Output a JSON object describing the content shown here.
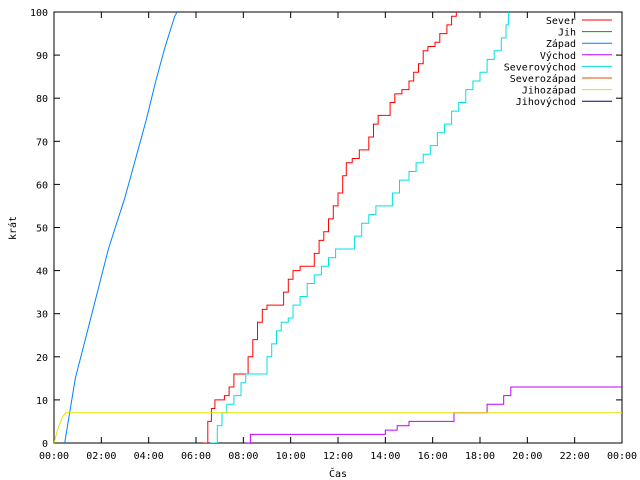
{
  "chart_data": {
    "type": "line",
    "title": "",
    "xlabel": "Čas",
    "ylabel": "krát",
    "xlim": [
      0,
      24
    ],
    "ylim": [
      0,
      100
    ],
    "xticks": [
      {
        "v": 0,
        "label": "00:00"
      },
      {
        "v": 2,
        "label": "02:00"
      },
      {
        "v": 4,
        "label": "04:00"
      },
      {
        "v": 6,
        "label": "06:00"
      },
      {
        "v": 8,
        "label": "08:00"
      },
      {
        "v": 10,
        "label": "10:00"
      },
      {
        "v": 12,
        "label": "12:00"
      },
      {
        "v": 14,
        "label": "14:00"
      },
      {
        "v": 16,
        "label": "16:00"
      },
      {
        "v": 18,
        "label": "18:00"
      },
      {
        "v": 20,
        "label": "20:00"
      },
      {
        "v": 22,
        "label": "22:00"
      },
      {
        "v": 24,
        "label": "00:00"
      }
    ],
    "yticks": [
      {
        "v": 0,
        "label": "0"
      },
      {
        "v": 10,
        "label": "10"
      },
      {
        "v": 20,
        "label": "20"
      },
      {
        "v": 30,
        "label": "30"
      },
      {
        "v": 40,
        "label": "40"
      },
      {
        "v": 50,
        "label": "50"
      },
      {
        "v": 60,
        "label": "60"
      },
      {
        "v": 70,
        "label": "70"
      },
      {
        "v": 80,
        "label": "80"
      },
      {
        "v": 90,
        "label": "90"
      },
      {
        "v": 100,
        "label": "100"
      }
    ],
    "grid": false,
    "legend_position": "top-right",
    "series": [
      {
        "name": "Sever",
        "color": "#ff0000",
        "step": true,
        "points": [
          [
            6.3,
            0
          ],
          [
            6.5,
            5
          ],
          [
            6.65,
            8
          ],
          [
            6.8,
            10
          ],
          [
            7.2,
            11
          ],
          [
            7.4,
            13
          ],
          [
            7.6,
            16
          ],
          [
            8.0,
            16
          ],
          [
            8.2,
            20
          ],
          [
            8.4,
            24
          ],
          [
            8.6,
            28
          ],
          [
            8.8,
            31
          ],
          [
            9.0,
            32
          ],
          [
            9.5,
            32
          ],
          [
            9.7,
            35
          ],
          [
            9.9,
            38
          ],
          [
            10.1,
            40
          ],
          [
            10.4,
            41
          ],
          [
            10.8,
            41
          ],
          [
            11.0,
            44
          ],
          [
            11.2,
            47
          ],
          [
            11.4,
            49
          ],
          [
            11.6,
            52
          ],
          [
            11.8,
            55
          ],
          [
            12.0,
            58
          ],
          [
            12.2,
            62
          ],
          [
            12.35,
            65
          ],
          [
            12.6,
            66
          ],
          [
            12.9,
            68
          ],
          [
            13.1,
            68
          ],
          [
            13.3,
            71
          ],
          [
            13.5,
            74
          ],
          [
            13.7,
            76
          ],
          [
            14.0,
            76
          ],
          [
            14.2,
            79
          ],
          [
            14.4,
            81
          ],
          [
            14.7,
            82
          ],
          [
            15.0,
            84
          ],
          [
            15.2,
            86
          ],
          [
            15.4,
            88
          ],
          [
            15.6,
            91
          ],
          [
            15.8,
            92
          ],
          [
            16.1,
            93
          ],
          [
            16.3,
            95
          ],
          [
            16.6,
            97
          ],
          [
            16.8,
            99
          ],
          [
            17.0,
            100
          ]
        ]
      },
      {
        "name": "Jih",
        "color": "#00a000",
        "step": true,
        "points": []
      },
      {
        "name": "Západ",
        "color": "#0080ff",
        "step": false,
        "points": [
          [
            0.45,
            0
          ],
          [
            0.9,
            15
          ],
          [
            1.6,
            30
          ],
          [
            2.3,
            45
          ],
          [
            3.0,
            57
          ],
          [
            3.4,
            65
          ],
          [
            3.9,
            75
          ],
          [
            4.3,
            84
          ],
          [
            4.7,
            92
          ],
          [
            5.1,
            99
          ],
          [
            5.2,
            100
          ]
        ]
      },
      {
        "name": "Východ",
        "color": "#c000ff",
        "step": true,
        "points": [
          [
            8.1,
            0
          ],
          [
            8.3,
            2
          ],
          [
            12.5,
            2
          ],
          [
            14.0,
            3
          ],
          [
            14.5,
            4
          ],
          [
            15.0,
            5
          ],
          [
            16.5,
            5
          ],
          [
            16.9,
            7
          ],
          [
            18.1,
            7
          ],
          [
            18.3,
            9
          ],
          [
            18.7,
            9
          ],
          [
            19.0,
            11
          ],
          [
            19.3,
            13
          ],
          [
            24.0,
            13
          ]
        ]
      },
      {
        "name": "Severovýchod",
        "color": "#00e0e0",
        "step": true,
        "points": [
          [
            6.6,
            0
          ],
          [
            6.9,
            4
          ],
          [
            7.1,
            7
          ],
          [
            7.3,
            9
          ],
          [
            7.6,
            11
          ],
          [
            7.9,
            14
          ],
          [
            8.1,
            16
          ],
          [
            8.8,
            16
          ],
          [
            9.0,
            20
          ],
          [
            9.2,
            23
          ],
          [
            9.4,
            26
          ],
          [
            9.6,
            28
          ],
          [
            9.9,
            29
          ],
          [
            10.1,
            32
          ],
          [
            10.4,
            34
          ],
          [
            10.7,
            37
          ],
          [
            11.0,
            39
          ],
          [
            11.3,
            41
          ],
          [
            11.6,
            43
          ],
          [
            11.9,
            45
          ],
          [
            12.4,
            45
          ],
          [
            12.7,
            48
          ],
          [
            13.0,
            51
          ],
          [
            13.3,
            53
          ],
          [
            13.6,
            55
          ],
          [
            14.0,
            55
          ],
          [
            14.3,
            58
          ],
          [
            14.6,
            61
          ],
          [
            15.0,
            63
          ],
          [
            15.3,
            65
          ],
          [
            15.6,
            67
          ],
          [
            15.9,
            69
          ],
          [
            16.2,
            72
          ],
          [
            16.5,
            74
          ],
          [
            16.8,
            77
          ],
          [
            17.1,
            79
          ],
          [
            17.4,
            82
          ],
          [
            17.7,
            84
          ],
          [
            18.0,
            86
          ],
          [
            18.3,
            89
          ],
          [
            18.6,
            91
          ],
          [
            18.9,
            94
          ],
          [
            19.1,
            97
          ],
          [
            19.2,
            100
          ]
        ]
      },
      {
        "name": "Severozápad",
        "color": "#e05000",
        "step": true,
        "points": []
      },
      {
        "name": "Jihozápad",
        "color": "#e8e000",
        "step": false,
        "points": [
          [
            0,
            0
          ],
          [
            0.15,
            3
          ],
          [
            0.35,
            6
          ],
          [
            0.5,
            7
          ],
          [
            24,
            7
          ]
        ]
      },
      {
        "name": "Jihovýchod",
        "color": "#000080",
        "step": true,
        "points": []
      }
    ]
  }
}
